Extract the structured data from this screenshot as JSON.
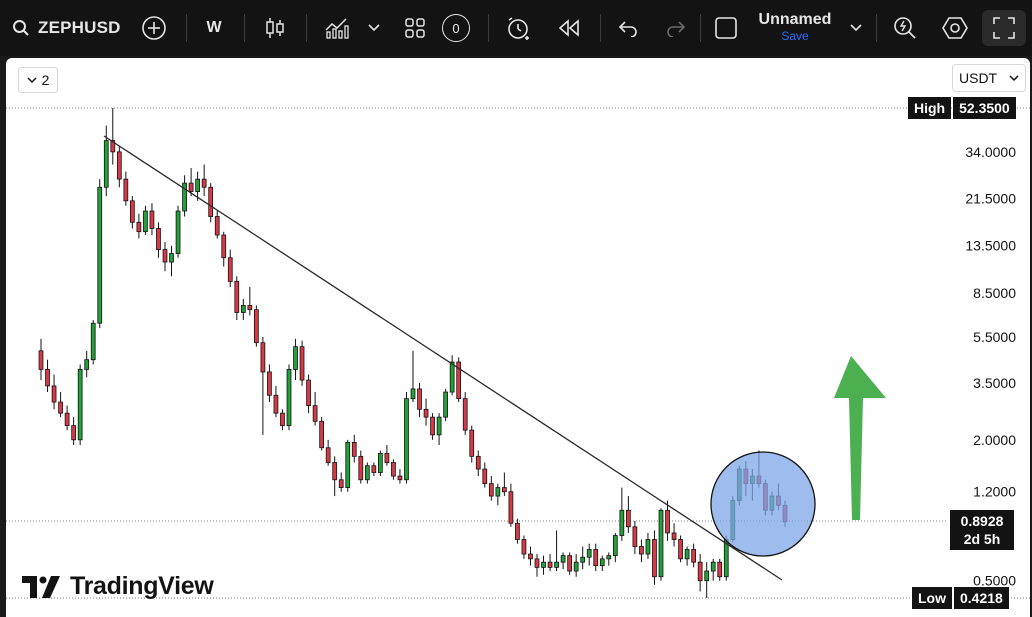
{
  "toolbar": {
    "symbol": "ZEPHUSD",
    "interval": "W",
    "indicator_count": "0",
    "layout_name": "Unnamed",
    "save_label": "Save"
  },
  "chart_header": {
    "series_toggle": "2",
    "currency": "USDT"
  },
  "high_label": {
    "key": "High",
    "value": "52.3500"
  },
  "low_label": {
    "key": "Low",
    "value": "0.4218"
  },
  "last_price": {
    "value": "0.8928",
    "countdown": "2d 5h"
  },
  "brand": {
    "name": "TradingView"
  },
  "colors": {
    "up": "#22a137",
    "down": "#d63a47",
    "circle_fill": "#7fa6e8",
    "arrow": "#4caf50"
  },
  "chart_data": {
    "type": "candlestick",
    "interval": "W",
    "scale": "log",
    "y_ticks": [
      "34.0000",
      "21.5000",
      "13.5000",
      "8.5000",
      "5.5000",
      "3.5000",
      "2.0000",
      "1.2000",
      "0.5000"
    ],
    "y_tick_values": [
      34.0,
      21.5,
      13.5,
      8.5,
      5.5,
      3.5,
      2.0,
      1.2,
      0.5
    ],
    "ylim": [
      0.4218,
      52.35
    ],
    "high": 52.35,
    "low": 0.4218,
    "last": 0.8928,
    "candles": [
      [
        4.8,
        5.4,
        3.6,
        4.0
      ],
      [
        4.0,
        4.4,
        3.2,
        3.4
      ],
      [
        3.4,
        3.8,
        2.7,
        2.9
      ],
      [
        2.9,
        3.2,
        2.5,
        2.6
      ],
      [
        2.6,
        2.8,
        2.2,
        2.3
      ],
      [
        2.3,
        2.5,
        1.9,
        2.0
      ],
      [
        2.0,
        4.2,
        1.9,
        4.0
      ],
      [
        4.0,
        4.8,
        3.7,
        4.4
      ],
      [
        4.4,
        6.5,
        4.2,
        6.3
      ],
      [
        6.3,
        26,
        6.0,
        24
      ],
      [
        24,
        44,
        22,
        38
      ],
      [
        38,
        52.35,
        30,
        34
      ],
      [
        34,
        36,
        24,
        26
      ],
      [
        26,
        28,
        20,
        21
      ],
      [
        21,
        22,
        16,
        17
      ],
      [
        17,
        18.5,
        14.5,
        15.5
      ],
      [
        15.5,
        20,
        15,
        19
      ],
      [
        19,
        20.5,
        15,
        16
      ],
      [
        16,
        17,
        12,
        13
      ],
      [
        13,
        14,
        10.5,
        11.5
      ],
      [
        11.5,
        13.5,
        10,
        12.5
      ],
      [
        12.5,
        20,
        12,
        19
      ],
      [
        19,
        27,
        18,
        25
      ],
      [
        25,
        29,
        22,
        23
      ],
      [
        23,
        28,
        21,
        26
      ],
      [
        26,
        30,
        22,
        24
      ],
      [
        24,
        25,
        17,
        18
      ],
      [
        18,
        19,
        14.5,
        15
      ],
      [
        15,
        15.5,
        11,
        12
      ],
      [
        12,
        13,
        9,
        9.5
      ],
      [
        9.5,
        10,
        6.5,
        7
      ],
      [
        7,
        8,
        6.5,
        7.5
      ],
      [
        7.5,
        9,
        6.8,
        7.2
      ],
      [
        7.2,
        7.5,
        5.0,
        5.2
      ],
      [
        5.2,
        5.5,
        2.1,
        3.9
      ],
      [
        3.9,
        4.2,
        2.9,
        3.1
      ],
      [
        3.1,
        3.4,
        2.5,
        2.6
      ],
      [
        2.6,
        2.7,
        2.2,
        2.3
      ],
      [
        2.3,
        4.2,
        2.2,
        4.0
      ],
      [
        4.0,
        5.4,
        3.6,
        5.0
      ],
      [
        5.0,
        5.3,
        3.4,
        3.6
      ],
      [
        3.6,
        3.8,
        2.6,
        2.8
      ],
      [
        2.8,
        3.2,
        2.3,
        2.4
      ],
      [
        2.4,
        2.5,
        1.8,
        1.85
      ],
      [
        1.85,
        2.0,
        1.55,
        1.6
      ],
      [
        1.6,
        1.7,
        1.15,
        1.35
      ],
      [
        1.35,
        1.45,
        1.2,
        1.25
      ],
      [
        1.25,
        2.0,
        1.2,
        1.95
      ],
      [
        1.95,
        2.1,
        1.6,
        1.7
      ],
      [
        1.7,
        1.8,
        1.3,
        1.35
      ],
      [
        1.35,
        1.6,
        1.3,
        1.55
      ],
      [
        1.55,
        1.6,
        1.4,
        1.45
      ],
      [
        1.45,
        1.8,
        1.4,
        1.75
      ],
      [
        1.75,
        1.9,
        1.55,
        1.6
      ],
      [
        1.6,
        1.65,
        1.35,
        1.4
      ],
      [
        1.4,
        1.5,
        1.3,
        1.35
      ],
      [
        1.35,
        3.2,
        1.3,
        3.0
      ],
      [
        3.0,
        4.8,
        2.9,
        3.3
      ],
      [
        3.3,
        3.5,
        2.5,
        2.7
      ],
      [
        2.7,
        3.0,
        2.3,
        2.5
      ],
      [
        2.5,
        2.6,
        2.0,
        2.1
      ],
      [
        2.1,
        2.6,
        1.9,
        2.5
      ],
      [
        2.5,
        3.3,
        2.4,
        3.2
      ],
      [
        3.2,
        4.6,
        3.1,
        4.3
      ],
      [
        4.3,
        4.5,
        2.9,
        3.0
      ],
      [
        3.0,
        3.2,
        2.1,
        2.2
      ],
      [
        2.2,
        2.3,
        1.6,
        1.7
      ],
      [
        1.7,
        1.8,
        1.4,
        1.5
      ],
      [
        1.5,
        1.6,
        1.25,
        1.3
      ],
      [
        1.3,
        1.4,
        1.1,
        1.15
      ],
      [
        1.15,
        1.3,
        1.05,
        1.25
      ],
      [
        1.25,
        1.45,
        1.15,
        1.2
      ],
      [
        1.2,
        1.3,
        0.85,
        0.88
      ],
      [
        0.88,
        0.92,
        0.72,
        0.75
      ],
      [
        0.75,
        0.78,
        0.62,
        0.65
      ],
      [
        0.65,
        0.7,
        0.58,
        0.62
      ],
      [
        0.62,
        0.65,
        0.52,
        0.57
      ],
      [
        0.57,
        0.64,
        0.53,
        0.6
      ],
      [
        0.6,
        0.65,
        0.55,
        0.57
      ],
      [
        0.57,
        0.82,
        0.55,
        0.6
      ],
      [
        0.6,
        0.66,
        0.56,
        0.64
      ],
      [
        0.64,
        0.66,
        0.53,
        0.55
      ],
      [
        0.55,
        0.65,
        0.52,
        0.6
      ],
      [
        0.6,
        0.7,
        0.56,
        0.63
      ],
      [
        0.63,
        0.72,
        0.58,
        0.68
      ],
      [
        0.68,
        0.72,
        0.55,
        0.58
      ],
      [
        0.58,
        0.64,
        0.55,
        0.62
      ],
      [
        0.62,
        0.66,
        0.58,
        0.64
      ],
      [
        0.64,
        0.8,
        0.6,
        0.78
      ],
      [
        0.78,
        1.25,
        0.74,
        1.0
      ],
      [
        1.0,
        1.15,
        0.8,
        0.85
      ],
      [
        0.85,
        0.9,
        0.65,
        0.7
      ],
      [
        0.7,
        0.75,
        0.6,
        0.65
      ],
      [
        0.65,
        0.8,
        0.62,
        0.75
      ],
      [
        0.75,
        0.82,
        0.48,
        0.52
      ],
      [
        0.52,
        1.02,
        0.5,
        1.0
      ],
      [
        1.0,
        1.1,
        0.74,
        0.8
      ],
      [
        0.8,
        0.88,
        0.7,
        0.75
      ],
      [
        0.75,
        0.78,
        0.6,
        0.62
      ],
      [
        0.62,
        0.7,
        0.58,
        0.68
      ],
      [
        0.68,
        0.72,
        0.57,
        0.6
      ],
      [
        0.6,
        0.65,
        0.45,
        0.5
      ],
      [
        0.5,
        0.6,
        0.4218,
        0.55
      ],
      [
        0.55,
        0.62,
        0.5,
        0.6
      ],
      [
        0.6,
        0.62,
        0.5,
        0.52
      ],
      [
        0.52,
        0.78,
        0.5,
        0.75
      ],
      [
        0.75,
        1.15,
        0.73,
        1.1
      ],
      [
        1.1,
        1.55,
        1.05,
        1.5
      ],
      [
        1.5,
        1.62,
        1.15,
        1.3
      ],
      [
        1.3,
        1.5,
        1.1,
        1.4
      ],
      [
        1.4,
        1.8,
        1.25,
        1.3
      ],
      [
        1.3,
        1.35,
        0.95,
        1.0
      ],
      [
        1.0,
        1.2,
        0.95,
        1.15
      ],
      [
        1.15,
        1.3,
        1.0,
        1.05
      ],
      [
        1.05,
        1.1,
        0.85,
        0.8928
      ]
    ]
  }
}
